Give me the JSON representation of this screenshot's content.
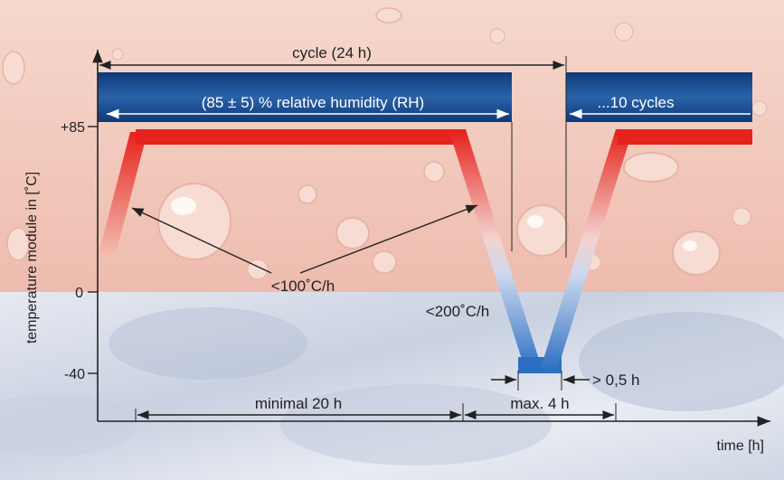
{
  "axes": {
    "ylabel": "temperature module in [˚C]",
    "xlabel": "time [h]",
    "ticks": [
      "+85",
      "0",
      "-40"
    ]
  },
  "labels": {
    "cycle": "cycle (24 h)",
    "humidity": "(85 ± 5) % relative humidity (RH)",
    "cycles": "...10 cycles",
    "rate_up": "<100˚C/h",
    "rate_down": "<200˚C/h",
    "minimal": "minimal 20 h",
    "max": "max. 4 h",
    "hold": "> 0,5 h"
  },
  "colors": {
    "hot": "#e5231c",
    "cold": "#2c6fc2",
    "humidity_band": "#1a4c8e",
    "warm_bg": "#f2c8bb",
    "cold_bg": "#dde2ec"
  }
}
